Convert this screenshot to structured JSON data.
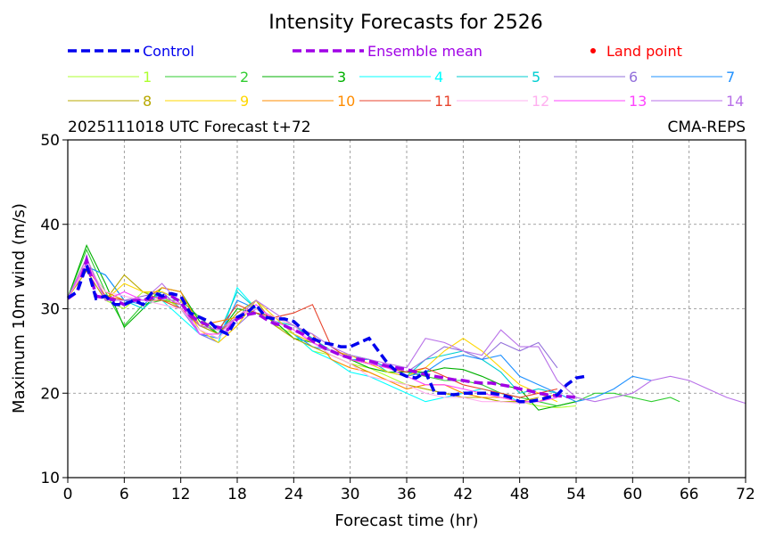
{
  "chart_data": {
    "type": "line",
    "title": "Intensity Forecasts for 2526",
    "subtitle_left": "2025111018 UTC Forecast t+72",
    "subtitle_right": "CMA-REPS",
    "xlabel": "Forecast time (hr)",
    "ylabel": "Maximum 10m wind (m/s)",
    "xlim": [
      0,
      72
    ],
    "ylim": [
      10,
      50
    ],
    "xticks": [
      0,
      6,
      12,
      18,
      24,
      30,
      36,
      42,
      48,
      54,
      60,
      66,
      72
    ],
    "yticks": [
      10,
      20,
      30,
      40,
      50
    ],
    "grid": true,
    "legend_position": "top",
    "land_point_label": "Land point",
    "land_point_color": "#ff0000",
    "control": {
      "name": "Control",
      "color": "#0000ee",
      "x": [
        0,
        1,
        2,
        3,
        4,
        5,
        6,
        7,
        8,
        9,
        10,
        11,
        12,
        13,
        14,
        15,
        16,
        17,
        18,
        19,
        20,
        21,
        22,
        23,
        24,
        25,
        26,
        27,
        28,
        29,
        30,
        31,
        32,
        33,
        34,
        35,
        36,
        37,
        38,
        39,
        40,
        41,
        42,
        43,
        44,
        45,
        46,
        47,
        48,
        49,
        50,
        51,
        52,
        53,
        54,
        55
      ],
      "values": [
        31.3,
        32,
        35.2,
        31.2,
        31.5,
        30.5,
        30.5,
        31,
        30.5,
        32,
        31.5,
        31.8,
        31.5,
        29.5,
        29,
        28.5,
        27.5,
        27,
        29,
        29.5,
        30.5,
        29,
        28.8,
        28.8,
        28.5,
        27.5,
        26.5,
        26,
        25.8,
        25.5,
        25.5,
        26,
        26.5,
        25,
        23.5,
        22.5,
        22,
        21.8,
        22.5,
        20,
        20,
        19.8,
        20,
        20,
        20,
        20,
        19.8,
        19.5,
        19,
        19,
        19.2,
        19.5,
        19.8,
        21,
        21.8,
        22
      ]
    },
    "ensemble_mean": {
      "name": "Ensemble mean",
      "color": "#a000e6",
      "x": [
        0,
        1,
        2,
        3,
        4,
        5,
        6,
        7,
        8,
        9,
        10,
        11,
        12,
        13,
        14,
        15,
        16,
        17,
        18,
        19,
        20,
        21,
        22,
        23,
        24,
        25,
        26,
        27,
        28,
        29,
        30,
        31,
        32,
        33,
        34,
        35,
        36,
        37,
        38,
        39,
        40,
        41,
        42,
        43,
        44,
        45,
        46,
        47,
        48,
        49,
        50,
        51,
        52,
        53,
        54
      ],
      "values": [
        31.2,
        32,
        35.8,
        31.5,
        31.3,
        31,
        30.5,
        31,
        31,
        31.3,
        31.3,
        31.5,
        30.8,
        29.2,
        28.5,
        28,
        27.8,
        27.5,
        28.8,
        29.3,
        29.5,
        28.8,
        28.2,
        28,
        27.5,
        27,
        26.2,
        25.5,
        25,
        24.5,
        24.2,
        24,
        23.8,
        23.5,
        23.2,
        23,
        22.8,
        22.5,
        22.2,
        22,
        21.8,
        21.6,
        21.5,
        21.3,
        21.2,
        21.2,
        21,
        20.8,
        20.5,
        20.3,
        20,
        19.8,
        19.7,
        19.6,
        19.5
      ]
    },
    "members": [
      {
        "name": "1",
        "color": "#adff2f",
        "x": [
          0,
          2,
          4,
          6,
          8,
          10,
          12,
          14,
          16,
          18,
          20,
          22,
          24,
          26,
          28,
          30,
          32,
          34,
          36,
          38,
          40,
          42,
          44,
          46,
          48,
          50,
          52,
          54
        ],
        "values": [
          31.3,
          36,
          31,
          30,
          32,
          31.5,
          30,
          27.5,
          26.5,
          29,
          31,
          28,
          27,
          25,
          24.5,
          23.5,
          23,
          22,
          21,
          20.5,
          20,
          19.5,
          19.5,
          19,
          19,
          18.5,
          18.3,
          18.5
        ]
      },
      {
        "name": "2",
        "color": "#32cd32",
        "x": [
          0,
          2,
          4,
          6,
          8,
          10,
          12,
          14,
          16,
          18,
          20,
          22,
          24,
          26,
          28,
          30,
          32,
          34,
          36,
          38,
          40,
          42,
          44,
          46,
          48,
          50,
          52,
          54,
          56,
          58,
          60,
          62,
          64,
          65
        ],
        "values": [
          31.3,
          37,
          32,
          28,
          30.5,
          31,
          31,
          29,
          27,
          29,
          30,
          29,
          28,
          26.5,
          25,
          24.5,
          24,
          23,
          22.5,
          22,
          21.5,
          21.5,
          21,
          20,
          19.5,
          19,
          18.5,
          19,
          20,
          20,
          19.5,
          19,
          19.5,
          19
        ]
      },
      {
        "name": "3",
        "color": "#00b000",
        "x": [
          0,
          2,
          4,
          6,
          8,
          10,
          12,
          14,
          16,
          18,
          20,
          22,
          24,
          26,
          28,
          30,
          32,
          34,
          36,
          38,
          40,
          42,
          44,
          46,
          48,
          50,
          52,
          54
        ],
        "values": [
          31.3,
          37.5,
          33,
          27.8,
          30,
          32.5,
          32,
          28.5,
          27,
          30,
          29.5,
          28.5,
          26.5,
          26,
          25,
          24,
          23,
          22.5,
          22.5,
          22.5,
          23,
          22.8,
          22,
          21,
          20.5,
          18,
          18.5,
          19
        ]
      },
      {
        "name": "4",
        "color": "#00ffff",
        "x": [
          0,
          2,
          4,
          6,
          8,
          10,
          12,
          14,
          16,
          18,
          20,
          22,
          24,
          26,
          28,
          30,
          32,
          34,
          36,
          38,
          40,
          42,
          44,
          46,
          48,
          50,
          52
        ],
        "values": [
          31.3,
          35,
          32,
          31,
          31,
          31,
          29,
          27,
          26,
          32.5,
          30,
          29,
          27,
          25,
          24,
          22.5,
          22,
          21,
          20,
          19,
          19.5,
          20,
          20.5,
          20,
          19,
          19,
          19.5
        ]
      },
      {
        "name": "5",
        "color": "#00ced1",
        "x": [
          0,
          2,
          4,
          6,
          8,
          10,
          12,
          14,
          16,
          18,
          20,
          22,
          24,
          26,
          28,
          30,
          32,
          34,
          36,
          38,
          40,
          42,
          44,
          46,
          48,
          50,
          52
        ],
        "values": [
          31.3,
          35,
          34,
          31,
          30,
          32,
          30,
          28,
          27,
          32,
          30,
          28.5,
          28,
          26.5,
          25,
          24,
          24,
          22.5,
          22,
          24,
          24.5,
          25,
          24,
          22.5,
          20,
          20.5,
          20
        ]
      },
      {
        "name": "6",
        "color": "#9370db",
        "x": [
          0,
          2,
          4,
          6,
          8,
          10,
          12,
          14,
          16,
          18,
          20,
          22,
          24,
          26,
          28,
          30,
          32,
          34,
          36,
          38,
          40,
          42,
          44,
          46,
          48,
          50,
          52
        ],
        "values": [
          31.3,
          36,
          31,
          31,
          31.5,
          32,
          30,
          27,
          26,
          28,
          30,
          29,
          27,
          26,
          25,
          24,
          23.5,
          23,
          22.5,
          24,
          25.5,
          25,
          24,
          26,
          25,
          26,
          23
        ]
      },
      {
        "name": "7",
        "color": "#1e90ff",
        "x": [
          0,
          2,
          4,
          6,
          8,
          10,
          12,
          14,
          16,
          18,
          20,
          22,
          24,
          26,
          28,
          30,
          32,
          34,
          36,
          38,
          40,
          42,
          44,
          46,
          48,
          50,
          52,
          54,
          56,
          58,
          60,
          62
        ],
        "values": [
          31.3,
          35,
          34,
          31,
          30.5,
          32,
          31,
          27,
          26.5,
          31,
          30,
          29,
          27,
          25.5,
          25,
          24.5,
          24,
          23,
          22,
          22.5,
          24,
          24.5,
          24,
          24.5,
          22,
          21,
          20,
          19,
          19.5,
          20.5,
          22,
          21.5
        ]
      },
      {
        "name": "8",
        "color": "#b8a800",
        "x": [
          0,
          2,
          4,
          6,
          8,
          10,
          12,
          14,
          16,
          18,
          20,
          22,
          24,
          26,
          28,
          30,
          32,
          34,
          36,
          38,
          40,
          42,
          44,
          46,
          48,
          50
        ],
        "values": [
          31.3,
          34.5,
          31,
          34,
          32,
          31,
          30.5,
          28,
          27,
          29.5,
          31,
          28,
          26.5,
          25.5,
          24.5,
          23.5,
          22.5,
          21.5,
          21,
          20.5,
          20,
          19.5,
          19.5,
          19,
          19,
          19.5
        ]
      },
      {
        "name": "9",
        "color": "#ffd700",
        "x": [
          0,
          2,
          4,
          6,
          8,
          10,
          12,
          14,
          16,
          18,
          20,
          22,
          24,
          26,
          28,
          30,
          32,
          34,
          36,
          38,
          40,
          42,
          44,
          46,
          48,
          50,
          52
        ],
        "values": [
          31.3,
          36,
          31,
          33,
          32,
          32,
          31,
          27.5,
          26,
          28,
          31,
          29,
          27,
          26,
          25,
          24.5,
          23.5,
          22.5,
          22,
          23,
          25,
          26.5,
          25,
          23,
          21,
          20,
          19
        ]
      },
      {
        "name": "10",
        "color": "#ff8c00",
        "x": [
          0,
          2,
          4,
          6,
          8,
          10,
          12,
          14,
          16,
          18,
          20,
          22,
          24,
          26,
          28,
          30,
          32,
          34,
          36,
          38,
          40,
          42,
          44,
          46,
          48,
          50,
          52
        ],
        "values": [
          31.3,
          35,
          32,
          31,
          31,
          32.5,
          32,
          28,
          28.5,
          29,
          30,
          29,
          28,
          27,
          24,
          23,
          22.5,
          21.5,
          20.5,
          21,
          21,
          20,
          19.5,
          19.5,
          19,
          19,
          20
        ]
      },
      {
        "name": "11",
        "color": "#e8432c",
        "x": [
          0,
          2,
          4,
          6,
          8,
          10,
          12,
          14,
          16,
          18,
          20,
          22,
          24,
          26,
          28,
          30,
          32,
          34,
          36,
          38,
          40,
          42,
          44,
          46,
          48,
          50,
          52
        ],
        "values": [
          31.3,
          35,
          31.5,
          31,
          31,
          31,
          30,
          28,
          27.5,
          30.5,
          29.5,
          29,
          29.5,
          30.5,
          25.5,
          24,
          23.5,
          23,
          22.5,
          23,
          22,
          21,
          20.5,
          20,
          19.5,
          20,
          20.5
        ]
      },
      {
        "name": "12",
        "color": "#ffb0f0",
        "x": [
          0,
          2,
          4,
          6,
          8,
          10,
          12,
          14,
          16,
          18,
          20,
          22,
          24,
          26,
          28,
          30,
          32,
          34,
          36,
          38,
          40,
          42,
          44,
          46,
          48,
          50,
          52
        ],
        "values": [
          31.3,
          35,
          32,
          31.5,
          31,
          30.5,
          30,
          27.5,
          26.5,
          29,
          30,
          29,
          28,
          26,
          24.5,
          23.5,
          22,
          21.5,
          21,
          20,
          19.5,
          19.5,
          19,
          19,
          18.8,
          19,
          19.5
        ]
      },
      {
        "name": "13",
        "color": "#ff44ff",
        "x": [
          0,
          2,
          4,
          6,
          8,
          10,
          12,
          14,
          16,
          18,
          20,
          22,
          24,
          26,
          28,
          30,
          32,
          34,
          36,
          38,
          40,
          42,
          44,
          46,
          48,
          50,
          52
        ],
        "values": [
          31.3,
          35.5,
          31,
          32,
          31,
          31.5,
          30.5,
          27,
          27,
          29,
          30.5,
          28.5,
          27.5,
          26,
          25,
          24,
          23.5,
          23,
          22,
          21,
          21,
          20.5,
          20,
          19.5,
          19,
          19,
          19.5
        ]
      },
      {
        "name": "14",
        "color": "#b870e8",
        "x": [
          0,
          2,
          4,
          6,
          8,
          10,
          12,
          14,
          16,
          18,
          20,
          22,
          24,
          26,
          28,
          30,
          32,
          34,
          36,
          38,
          40,
          42,
          44,
          46,
          48,
          50,
          52,
          54,
          56,
          58,
          60,
          62,
          64,
          66,
          68,
          70,
          72
        ],
        "values": [
          31.3,
          36,
          31,
          31,
          31,
          33,
          30.5,
          28,
          27.5,
          29,
          31,
          29.5,
          28,
          27,
          25.5,
          24.5,
          24,
          23.5,
          23,
          26.5,
          26,
          25,
          24.5,
          27.5,
          25.5,
          25.5,
          21.5,
          19.5,
          19,
          19.5,
          20,
          21.5,
          22,
          21.5,
          20.5,
          19.5,
          18.8
        ]
      }
    ]
  }
}
